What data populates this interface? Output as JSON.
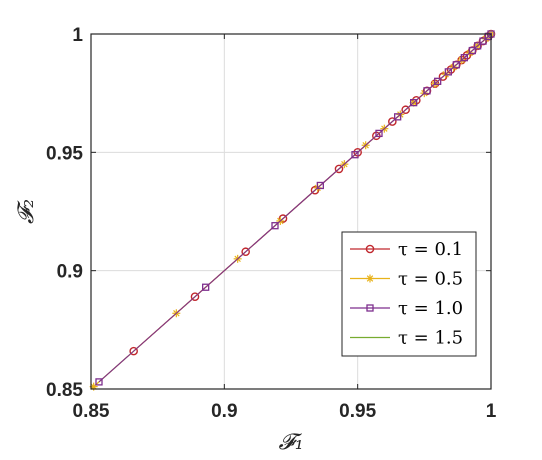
{
  "chart_data": {
    "type": "line",
    "xlabel": "𝓕₁",
    "ylabel": "𝓕₂",
    "xlim": [
      0.85,
      1.0
    ],
    "ylim": [
      0.85,
      1.0
    ],
    "xticks": [
      "0.85",
      "0.9",
      "0.95",
      "1"
    ],
    "yticks": [
      "0.85",
      "0.9",
      "0.95",
      "1"
    ],
    "grid": true,
    "legend_position": "lower-right",
    "series": [
      {
        "name": "τ = 0.1",
        "color": "#c0272d",
        "marker": "circle",
        "x": [
          0.866,
          0.889,
          0.908,
          0.922,
          0.934,
          0.943,
          0.95,
          0.957,
          0.963,
          0.968,
          0.972,
          0.976,
          0.979,
          0.982,
          0.985,
          0.987,
          0.989,
          0.991,
          0.993,
          0.995,
          0.997,
          0.999,
          1.0
        ],
        "y": [
          0.866,
          0.889,
          0.908,
          0.922,
          0.934,
          0.943,
          0.95,
          0.957,
          0.963,
          0.968,
          0.972,
          0.976,
          0.979,
          0.982,
          0.985,
          0.987,
          0.989,
          0.991,
          0.993,
          0.995,
          0.997,
          0.999,
          1.0
        ]
      },
      {
        "name": "τ = 0.5",
        "color": "#e8b21a",
        "marker": "asterisk",
        "x": [
          0.851,
          0.882,
          0.905,
          0.921,
          0.935,
          0.945,
          0.953,
          0.96,
          0.966,
          0.971,
          0.975,
          0.979,
          0.983,
          0.986,
          0.989,
          0.992,
          0.995,
          0.998,
          1.0
        ],
        "y": [
          0.851,
          0.882,
          0.905,
          0.921,
          0.935,
          0.945,
          0.953,
          0.96,
          0.966,
          0.971,
          0.975,
          0.979,
          0.983,
          0.986,
          0.989,
          0.992,
          0.995,
          0.998,
          1.0
        ]
      },
      {
        "name": "τ = 1.0",
        "color": "#7e2f8e",
        "marker": "square",
        "x": [
          0.853,
          0.893,
          0.919,
          0.936,
          0.949,
          0.958,
          0.965,
          0.971,
          0.976,
          0.98,
          0.984,
          0.987,
          0.99,
          0.993,
          0.995,
          0.997,
          0.999,
          1.0
        ],
        "y": [
          0.853,
          0.893,
          0.919,
          0.936,
          0.949,
          0.958,
          0.965,
          0.971,
          0.976,
          0.98,
          0.984,
          0.987,
          0.99,
          0.993,
          0.995,
          0.997,
          0.999,
          1.0
        ]
      },
      {
        "name": "τ = 1.5",
        "color": "#77ac30",
        "marker": "none",
        "x": [
          0.85,
          1.0
        ],
        "y": [
          0.85,
          1.0
        ]
      }
    ]
  }
}
